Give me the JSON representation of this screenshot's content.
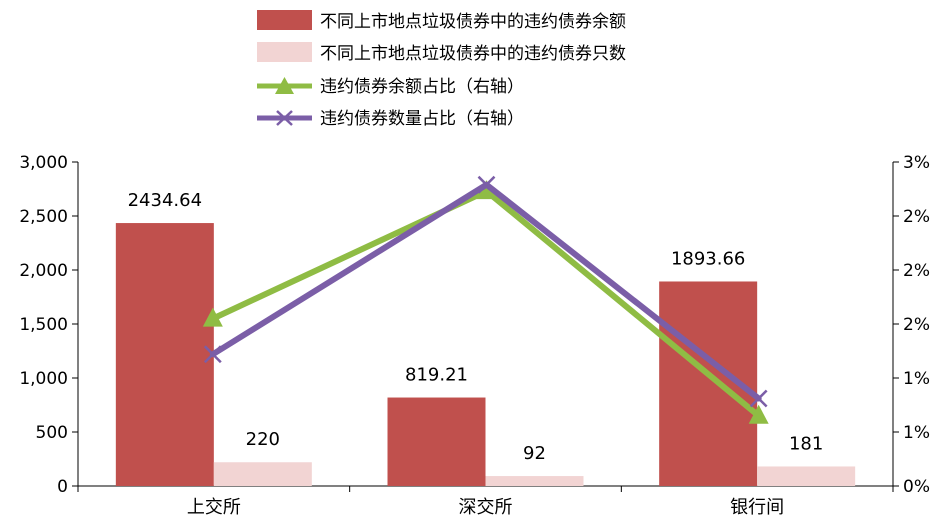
{
  "chart_data": {
    "type": "bar",
    "categories": [
      "上交所",
      "深交所",
      "银行间"
    ],
    "series": [
      {
        "name": "不同上市地点垃圾债券中的违约债券余额",
        "kind": "bar",
        "axis": "left",
        "color": "#c0504d",
        "values": [
          2434.64,
          819.21,
          1893.66
        ],
        "labels": [
          "2434.64",
          "819.21",
          "1893.66"
        ]
      },
      {
        "name": "不同上市地点垃圾债券中的违约债券只数",
        "kind": "bar",
        "axis": "left",
        "color": "#f2d4d3",
        "values": [
          220,
          92,
          181
        ],
        "labels": [
          "220",
          "92",
          "181"
        ]
      },
      {
        "name": "违约债券余额占比（右轴）",
        "kind": "line",
        "axis": "right",
        "color": "#8fbc44",
        "marker": "triangle",
        "values": [
          0.0155,
          0.0273,
          0.0065
        ]
      },
      {
        "name": "违约债券数量占比（右轴）",
        "kind": "line",
        "axis": "right",
        "color": "#7b5ea7",
        "marker": "x",
        "values": [
          0.0122,
          0.0279,
          0.0081
        ]
      }
    ],
    "y_left": {
      "ylim": [
        0,
        3000
      ],
      "ticks": [
        0,
        500,
        1000,
        1500,
        2000,
        2500,
        3000
      ],
      "tick_labels": [
        "0",
        "500",
        "1,000",
        "1,500",
        "2,000",
        "2,500",
        "3,000"
      ]
    },
    "y_right": {
      "ylim": [
        0,
        0.03
      ],
      "ticks": [
        0,
        0.005,
        0.01,
        0.015,
        0.02,
        0.025,
        0.03
      ],
      "tick_labels": [
        "0%",
        "1%",
        "1%",
        "2%",
        "2%",
        "2%",
        "3%"
      ]
    },
    "legend_position": "top-center",
    "grid": false
  }
}
